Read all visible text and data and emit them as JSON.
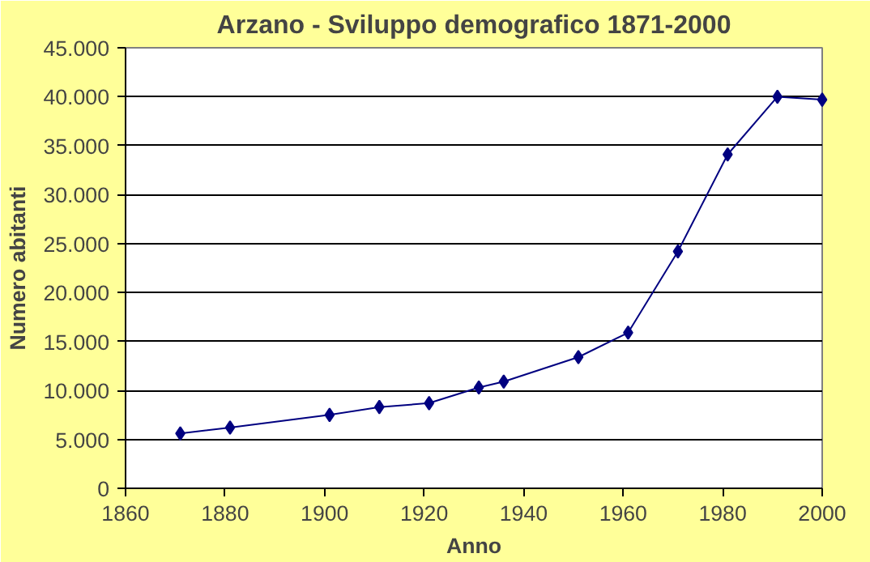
{
  "chart_data": {
    "type": "line",
    "title": "Arzano - Sviluppo demografico 1871-2000",
    "xlabel": "Anno",
    "ylabel": "Numero abitanti",
    "x": [
      1871,
      1881,
      1901,
      1911,
      1921,
      1931,
      1936,
      1951,
      1961,
      1971,
      1981,
      1991,
      2000
    ],
    "series": [
      {
        "color": "#000080",
        "values": [
          5600,
          6200,
          7500,
          8300,
          8700,
          10300,
          10900,
          13400,
          15900,
          24200,
          34100,
          40000,
          39700
        ]
      }
    ],
    "xlim": [
      1860,
      2000
    ],
    "xticks": [
      1860,
      1880,
      1900,
      1920,
      1940,
      1960,
      1980,
      2000
    ],
    "ylim": [
      0,
      45000
    ],
    "yticks": [
      {
        "value": 0,
        "label": "0"
      },
      {
        "value": 5000,
        "label": "5.000"
      },
      {
        "value": 10000,
        "label": "10.000"
      },
      {
        "value": 15000,
        "label": "15.000"
      },
      {
        "value": 20000,
        "label": "20.000"
      },
      {
        "value": 25000,
        "label": "25.000"
      },
      {
        "value": 30000,
        "label": "30.000"
      },
      {
        "value": 35000,
        "label": "35.000"
      },
      {
        "value": 40000,
        "label": "40.000"
      },
      {
        "value": 45000,
        "label": "45.000"
      }
    ],
    "grid": "y",
    "marker": "diamond",
    "line_style": "solid"
  }
}
